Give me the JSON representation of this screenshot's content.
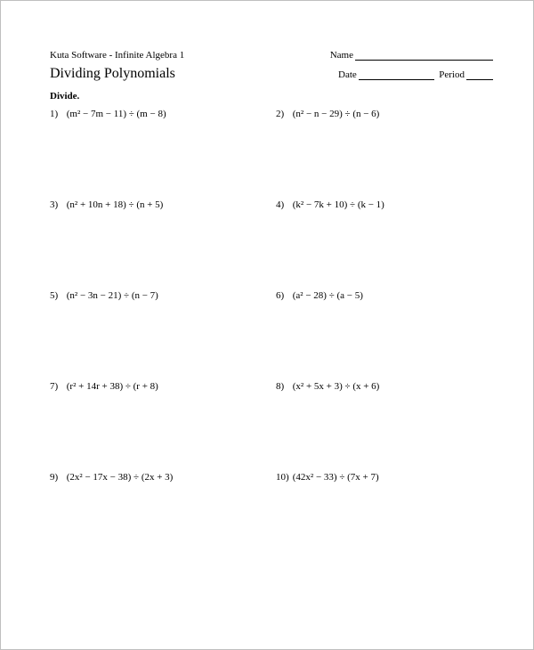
{
  "header": {
    "software": "Kuta Software - Infinite Algebra 1",
    "name_label": "Name",
    "title": "Dividing Polynomials",
    "date_label": "Date",
    "period_label": "Period"
  },
  "instruction": "Divide.",
  "problems": [
    {
      "num": "1)",
      "expr": "(m² − 7m − 11) ÷ (m − 8)"
    },
    {
      "num": "2)",
      "expr": "(n² − n − 29) ÷ (n − 6)"
    },
    {
      "num": "3)",
      "expr": "(n² + 10n + 18) ÷ (n + 5)"
    },
    {
      "num": "4)",
      "expr": "(k² − 7k + 10) ÷ (k − 1)"
    },
    {
      "num": "5)",
      "expr": "(n² − 3n − 21) ÷ (n − 7)"
    },
    {
      "num": "6)",
      "expr": "(a² − 28) ÷ (a − 5)"
    },
    {
      "num": "7)",
      "expr": "(r² + 14r + 38) ÷ (r + 8)"
    },
    {
      "num": "8)",
      "expr": "(x² + 5x + 3) ÷ (x + 6)"
    },
    {
      "num": "9)",
      "expr": "(2x² − 17x − 38) ÷ (2x + 3)"
    },
    {
      "num": "10)",
      "expr": "(42x² − 33) ÷ (7x + 7)"
    }
  ]
}
